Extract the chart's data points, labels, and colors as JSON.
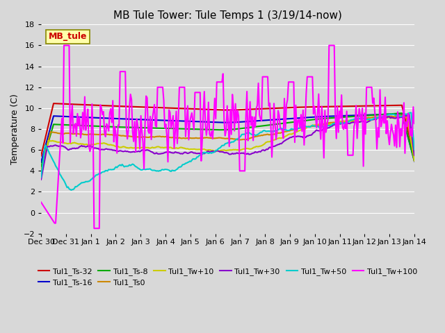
{
  "title": "MB Tule Tower: Tule Temps 1 (3/19/14-now)",
  "ylabel": "Temperature (C)",
  "xlabel": "",
  "background_color": "#d8d8d8",
  "ylim": [
    -2,
    18
  ],
  "yticks": [
    -2,
    0,
    2,
    4,
    6,
    8,
    10,
    12,
    14,
    16,
    18
  ],
  "x_labels": [
    "Dec 30",
    "Dec 31",
    "Jan 1",
    "Jan 2",
    "Jan 3",
    "Jan 4",
    "Jan 5",
    "Jan 6",
    "Jan 7",
    "Jan 8",
    "Jan 9",
    "Jan 10",
    "Jan 11",
    "Jan 12",
    "Jan 13",
    "Jan 14"
  ],
  "series": {
    "Tul1_Ts-32": {
      "color": "#cc0000",
      "lw": 1.5
    },
    "Tul1_Ts-16": {
      "color": "#0000cc",
      "lw": 1.5
    },
    "Tul1_Ts-8": {
      "color": "#00aa00",
      "lw": 1.5
    },
    "Tul1_Ts0": {
      "color": "#cc8800",
      "lw": 1.5
    },
    "Tul1_Tw+10": {
      "color": "#cccc00",
      "lw": 1.5
    },
    "Tul1_Tw+30": {
      "color": "#8800cc",
      "lw": 1.5
    },
    "Tul1_Tw+50": {
      "color": "#00cccc",
      "lw": 1.5
    },
    "Tul1_Tw+100": {
      "color": "#ff00ff",
      "lw": 1.5
    }
  },
  "legend_box": {
    "label": "MB_tule",
    "facecolor": "#ffffaa",
    "edgecolor": "#888800",
    "textcolor": "#cc0000"
  }
}
